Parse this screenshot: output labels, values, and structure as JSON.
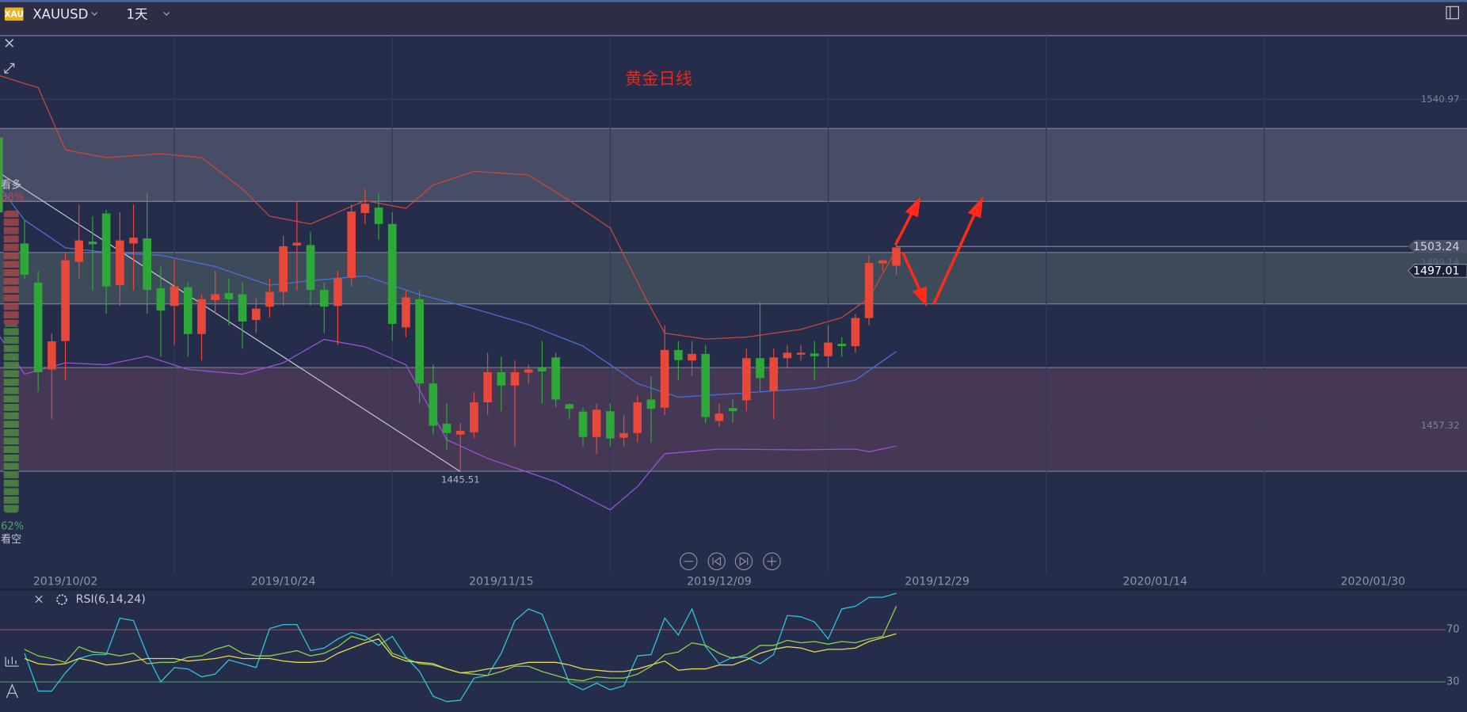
{
  "header": {
    "icon": "XAU",
    "symbol": "XAUUSD",
    "interval": "1天"
  },
  "sidebar": {
    "bull_label": "看多",
    "bull": {
      "value": 38,
      "label": "38%"
    },
    "bear": {
      "value": 62,
      "label": "62%"
    },
    "bear_label": "看空"
  },
  "chart_data": [
    {
      "type": "candlestick",
      "title": "黄金日线",
      "open": [
        1504,
        1494,
        1471.7,
        1479,
        1499.3,
        1504.5,
        1511.7,
        1493.3,
        1504,
        1505.3,
        1492.5,
        1488,
        1492.8,
        1480.8,
        1489.5,
        1491.3,
        1491,
        1484.4,
        1487.8,
        1491.6,
        1503.5,
        1503.6,
        1492.1,
        1488,
        1495.2,
        1511.8,
        1513.2,
        1509,
        1482.5,
        1489.7,
        1468.1,
        1457.8,
        1455,
        1455.6,
        1463.3,
        1471,
        1467.6,
        1470.9,
        1472.2,
        1474.8,
        1462.8,
        1460.9,
        1454.4,
        1461,
        1454.2,
        1455.4,
        1464,
        1461.9,
        1476.7,
        1474,
        1475.7,
        1458.5,
        1461.8,
        1463.8,
        1474.6,
        1466.2,
        1474.6,
        1475.5,
        1475.8,
        1475.1,
        1478.3,
        1477.7,
        1484.9,
        1498.9,
        1498.3
      ],
      "high": [
        1510,
        1497,
        1481,
        1501.7,
        1514,
        1511,
        1512.6,
        1512,
        1514,
        1517,
        1498,
        1500,
        1494,
        1491,
        1497,
        1495,
        1494,
        1490,
        1495,
        1506,
        1515,
        1507,
        1494,
        1497,
        1514,
        1518,
        1517,
        1512,
        1492,
        1492,
        1473,
        1463,
        1458,
        1466,
        1476,
        1475,
        1474,
        1473,
        1479,
        1476,
        1463,
        1462,
        1463,
        1463,
        1460,
        1465,
        1470,
        1483,
        1479,
        1479,
        1478,
        1463,
        1464,
        1477,
        1489,
        1477,
        1478,
        1478,
        1479,
        1483,
        1480,
        1486,
        1501,
        1500,
        1505
      ],
      "low": [
        1495,
        1466,
        1459,
        1469,
        1495,
        1492,
        1486,
        1488,
        1492,
        1486,
        1475,
        1478,
        1475,
        1474,
        1486,
        1483,
        1477,
        1481,
        1485,
        1488,
        1492,
        1488,
        1481,
        1478,
        1493,
        1509,
        1505,
        1479,
        1480,
        1463,
        1455,
        1451,
        1445.51,
        1454,
        1460,
        1461,
        1452,
        1468,
        1463,
        1462,
        1459,
        1452,
        1450,
        1452,
        1452,
        1453,
        1453,
        1460,
        1469,
        1470,
        1458,
        1457,
        1458,
        1461,
        1466,
        1459,
        1472,
        1474,
        1469,
        1472,
        1475,
        1476,
        1483,
        1497,
        1496
      ],
      "close": [
        1496,
        1471,
        1478.9,
        1499.7,
        1504.8,
        1503.8,
        1493,
        1504.8,
        1505.5,
        1492.1,
        1486.8,
        1493,
        1480.8,
        1489.7,
        1491,
        1489.7,
        1484,
        1487.3,
        1491.6,
        1503.3,
        1504.2,
        1492.1,
        1487.8,
        1495.2,
        1512.2,
        1514.2,
        1509,
        1483.4,
        1490.2,
        1468.1,
        1457.3,
        1455.4,
        1456,
        1463.3,
        1471,
        1467.6,
        1471,
        1471.7,
        1471.2,
        1464,
        1461.6,
        1454.4,
        1461.4,
        1454,
        1455.4,
        1463.3,
        1461.6,
        1476.7,
        1474.1,
        1475.7,
        1459.5,
        1460.4,
        1461,
        1474.6,
        1469.5,
        1474.8,
        1476,
        1476,
        1475.1,
        1478.6,
        1477.7,
        1484.9,
        1499,
        1499.7,
        1503
      ],
      "colors": {
        "up": "#e8483a",
        "down": "#2fa83a"
      },
      "xlim": [
        -1.8,
        105.9
      ],
      "xticks": [
        {
          "value": 3,
          "label": "2019/10/02"
        },
        {
          "value": 19,
          "label": "2019/10/24"
        },
        {
          "value": 35,
          "label": "2019/11/15"
        },
        {
          "value": 51,
          "label": "2019/12/09"
        },
        {
          "value": 67,
          "label": "2019/12/29"
        },
        {
          "value": 83,
          "label": "2020/01/14"
        },
        {
          "value": 99,
          "label": "2020/01/30"
        }
      ],
      "xgrid": [
        11,
        27,
        43,
        59,
        75,
        91
      ],
      "ylim": [
        1419.4,
        1557.3
      ],
      "yticks": [
        1540.97,
        1457.32
      ],
      "zones": [
        {
          "range": [
            1514.8,
            1533.5
          ],
          "color": "rgba(160,160,175,0.28)"
        },
        {
          "range": [
            1488.5,
            1501.7
          ],
          "color": "rgba(130,160,140,0.26)"
        },
        {
          "range": [
            1445.6,
            1472.2
          ],
          "color": "rgba(150,85,110,0.28)"
        }
      ],
      "bands": [
        {
          "color": "#c8473a",
          "x": [
            -1.8,
            0,
            1,
            3,
            6,
            10,
            13,
            16,
            18,
            21,
            25,
            28,
            30,
            33,
            37,
            40,
            43,
            45.6,
            47,
            50,
            53,
            57,
            60,
            62,
            64
          ],
          "values": [
            1547,
            1545,
            1544,
            1528,
            1526,
            1527,
            1526,
            1518,
            1511,
            1509,
            1515,
            1513,
            1519,
            1522.5,
            1521.6,
            1515,
            1508,
            1490,
            1481,
            1479.5,
            1480,
            1482,
            1485,
            1490,
            1502.5
          ]
        },
        {
          "color": "#4a6fd8",
          "x": [
            -1.8,
            0,
            3,
            6,
            10,
            14,
            18,
            21,
            25,
            29,
            33,
            37,
            41,
            45,
            48,
            52,
            58,
            61,
            64
          ],
          "values": [
            1518.4,
            1510,
            1502.9,
            1501.7,
            1501,
            1498.1,
            1493.3,
            1494.5,
            1495.7,
            1490.9,
            1487.3,
            1483.2,
            1477.7,
            1468.1,
            1464.6,
            1465.5,
            1466.9,
            1469,
            1476.3
          ]
        },
        {
          "color": "#9b4fd6",
          "x": [
            -1.8,
            0,
            3,
            6,
            9,
            12,
            16,
            19,
            22,
            25,
            28,
            31,
            34,
            39,
            43,
            45,
            47,
            51,
            57,
            61,
            62,
            64
          ],
          "values": [
            1480.1,
            1470.5,
            1473.4,
            1472.9,
            1475.1,
            1471.7,
            1470.5,
            1473.4,
            1479.4,
            1477.5,
            1472.9,
            1453.7,
            1448.9,
            1442.9,
            1435.7,
            1441.7,
            1450.1,
            1451.3,
            1451.1,
            1451.3,
            1450.6,
            1452.1
          ]
        }
      ],
      "trendline": {
        "color": "#c8c8d0",
        "x": [
          -1.8,
          32
        ],
        "values": [
          1522,
          1445.51
        ]
      },
      "low_mark": {
        "x": 32,
        "value": 1445.51
      },
      "price_marks": [
        {
          "value": 1503.24,
          "style": "tag"
        },
        {
          "value": 1499.14,
          "style": "faint"
        },
        {
          "value": 1497.01,
          "style": "current"
        }
      ]
    },
    {
      "type": "line",
      "title": "RSI(6,14,24)",
      "xlim": [
        -1.8,
        105.9
      ],
      "ylim": [
        7,
        101
      ],
      "yticks": [
        70,
        30
      ],
      "tick_colors": [
        "#b04050",
        "#3fa060"
      ],
      "series": [
        {
          "color": "#2ec4d8",
          "values": [
            52,
            23,
            23,
            37,
            48,
            51,
            51,
            79,
            77,
            51,
            30,
            41,
            40,
            34,
            36,
            47,
            44,
            41,
            71,
            74,
            74,
            54,
            56,
            63,
            68,
            65,
            58,
            65,
            49,
            38,
            19,
            15,
            16,
            33,
            35,
            52,
            77,
            86,
            82,
            56,
            29,
            24,
            29,
            24,
            27,
            50,
            51,
            79,
            66,
            86,
            57,
            44,
            49,
            49,
            44,
            51,
            81,
            80,
            76,
            63,
            86,
            88,
            95,
            95,
            98
          ]
        },
        {
          "color": "#8ed04a",
          "values": [
            55,
            50,
            48,
            45,
            57,
            53,
            52,
            50,
            52,
            44,
            45,
            45,
            49,
            50,
            55,
            58,
            52,
            50,
            50,
            52,
            54,
            50,
            52,
            57,
            65,
            62,
            67,
            52,
            48,
            44,
            43,
            40,
            37,
            36,
            35,
            38,
            42,
            42,
            38,
            35,
            32,
            31,
            34,
            33,
            33,
            36,
            42,
            51,
            53,
            60,
            58,
            52,
            48,
            51,
            58,
            58,
            62,
            60,
            61,
            59,
            61,
            60,
            63,
            65,
            88
          ]
        },
        {
          "color": "#e8d84a",
          "values": [
            48,
            44,
            43,
            44,
            48,
            46,
            43,
            44,
            46,
            48,
            48,
            48,
            46,
            47,
            48,
            50,
            48,
            48,
            48,
            46,
            45,
            45,
            46,
            52,
            56,
            60,
            63,
            50,
            46,
            45,
            44,
            40,
            37,
            38,
            40,
            41,
            43,
            45,
            45,
            45,
            43,
            40,
            39,
            38,
            38,
            40,
            43,
            46,
            39,
            40,
            40,
            43,
            43,
            47,
            52,
            55,
            57,
            56,
            53,
            55,
            55,
            56,
            61,
            64,
            67
          ]
        }
      ]
    }
  ]
}
